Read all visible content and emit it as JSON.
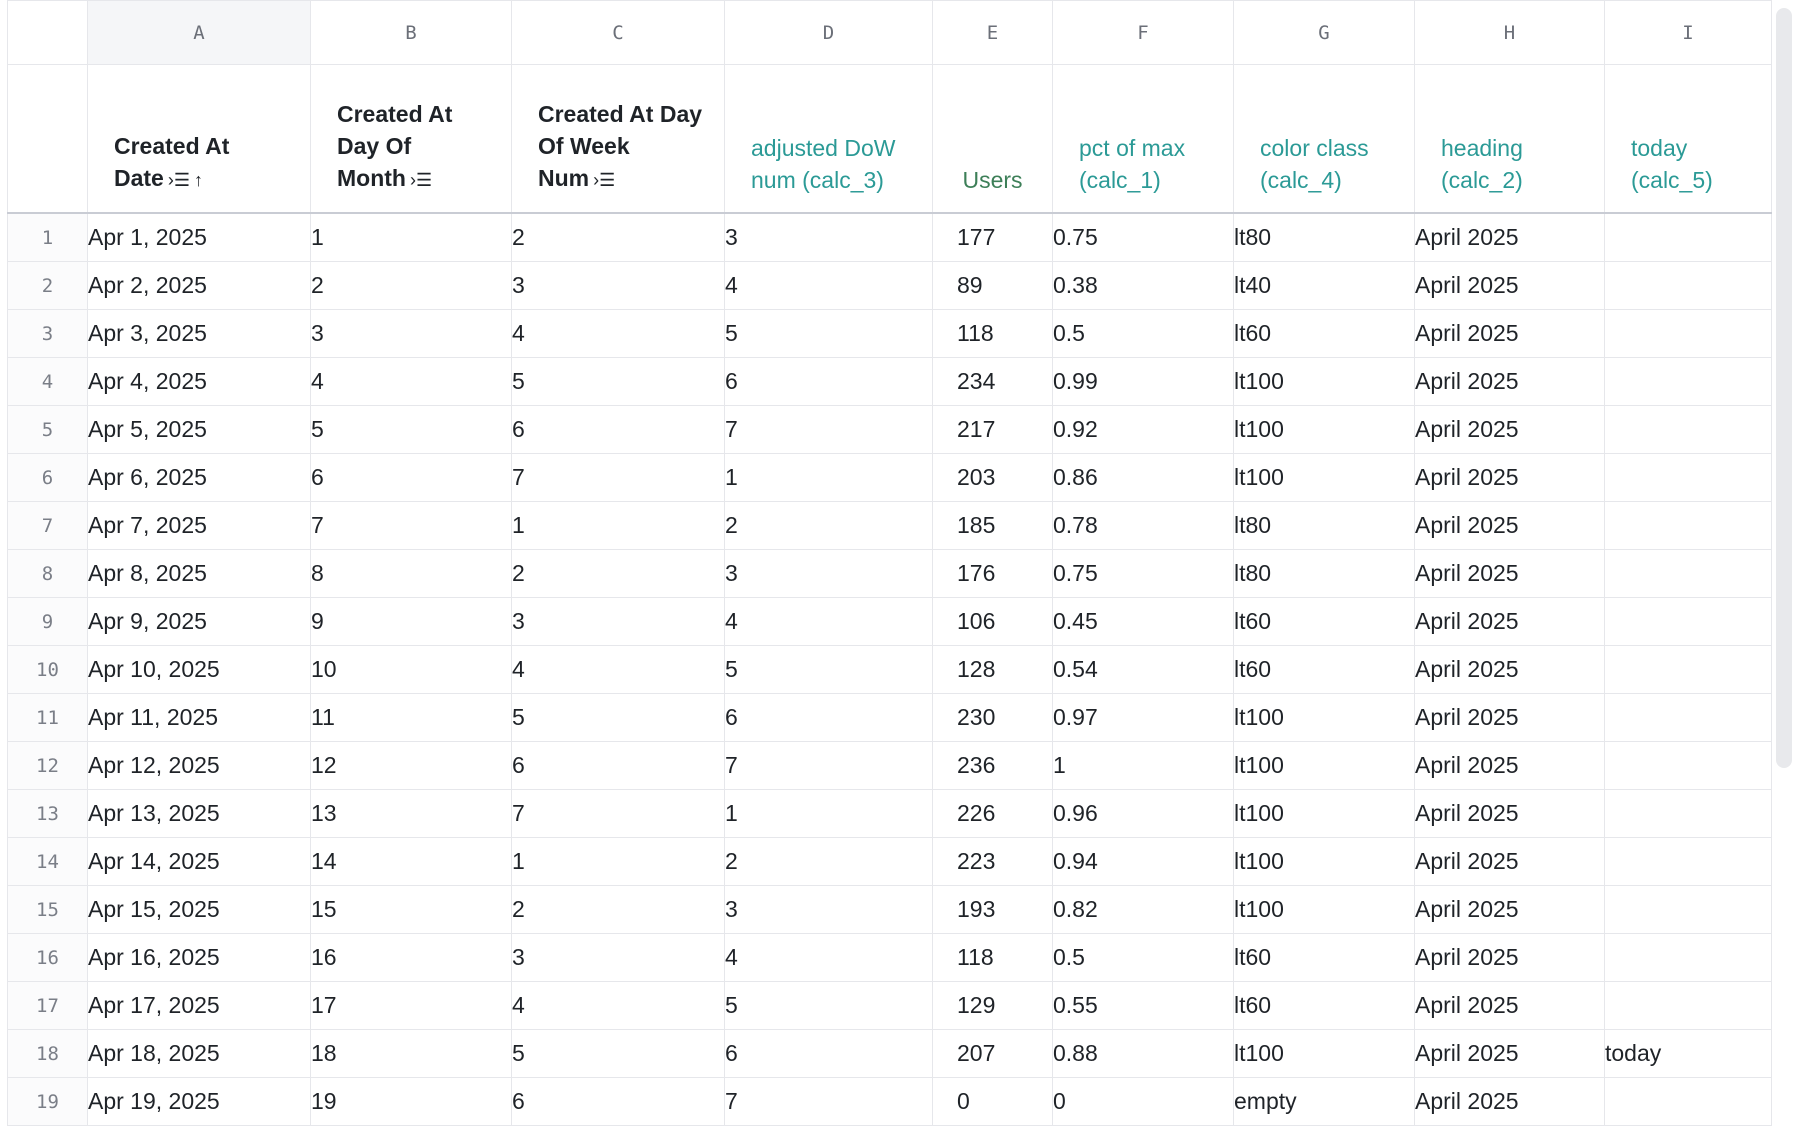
{
  "column_letters": [
    "A",
    "B",
    "C",
    "D",
    "E",
    "F",
    "G",
    "H",
    "I"
  ],
  "headers": [
    {
      "label": "Created At Date",
      "icons": [
        "sort-menu-icon",
        "sort-ascending-icon"
      ],
      "kind": "dimension"
    },
    {
      "label": "Created At Day Of Month",
      "icons": [
        "sort-menu-icon"
      ],
      "kind": "dimension"
    },
    {
      "label": "Created At Day Of Week Num",
      "icons": [
        "sort-menu-icon"
      ],
      "kind": "dimension"
    },
    {
      "label": "adjusted DoW num (calc_3)",
      "kind": "calc"
    },
    {
      "label": "Users",
      "kind": "measure"
    },
    {
      "label": "pct of max (calc_1)",
      "kind": "calc"
    },
    {
      "label": "color class (calc_4)",
      "kind": "calc"
    },
    {
      "label": "heading (calc_2)",
      "kind": "calc"
    },
    {
      "label": "today (calc_5)",
      "kind": "calc"
    }
  ],
  "colors": {
    "calc": "#2b9a96",
    "measure": "#3d7f58",
    "dimension": "#1f2328"
  },
  "rows": [
    [
      "1",
      "Apr 1, 2025",
      "1",
      "2",
      "3",
      "177",
      "0.75",
      "lt80",
      "April 2025",
      ""
    ],
    [
      "2",
      "Apr 2, 2025",
      "2",
      "3",
      "4",
      "89",
      "0.38",
      "lt40",
      "April 2025",
      ""
    ],
    [
      "3",
      "Apr 3, 2025",
      "3",
      "4",
      "5",
      "118",
      "0.5",
      "lt60",
      "April 2025",
      ""
    ],
    [
      "4",
      "Apr 4, 2025",
      "4",
      "5",
      "6",
      "234",
      "0.99",
      "lt100",
      "April 2025",
      ""
    ],
    [
      "5",
      "Apr 5, 2025",
      "5",
      "6",
      "7",
      "217",
      "0.92",
      "lt100",
      "April 2025",
      ""
    ],
    [
      "6",
      "Apr 6, 2025",
      "6",
      "7",
      "1",
      "203",
      "0.86",
      "lt100",
      "April 2025",
      ""
    ],
    [
      "7",
      "Apr 7, 2025",
      "7",
      "1",
      "2",
      "185",
      "0.78",
      "lt80",
      "April 2025",
      ""
    ],
    [
      "8",
      "Apr 8, 2025",
      "8",
      "2",
      "3",
      "176",
      "0.75",
      "lt80",
      "April 2025",
      ""
    ],
    [
      "9",
      "Apr 9, 2025",
      "9",
      "3",
      "4",
      "106",
      "0.45",
      "lt60",
      "April 2025",
      ""
    ],
    [
      "10",
      "Apr 10, 2025",
      "10",
      "4",
      "5",
      "128",
      "0.54",
      "lt60",
      "April 2025",
      ""
    ],
    [
      "11",
      "Apr 11, 2025",
      "11",
      "5",
      "6",
      "230",
      "0.97",
      "lt100",
      "April 2025",
      ""
    ],
    [
      "12",
      "Apr 12, 2025",
      "12",
      "6",
      "7",
      "236",
      "1",
      "lt100",
      "April 2025",
      ""
    ],
    [
      "13",
      "Apr 13, 2025",
      "13",
      "7",
      "1",
      "226",
      "0.96",
      "lt100",
      "April 2025",
      ""
    ],
    [
      "14",
      "Apr 14, 2025",
      "14",
      "1",
      "2",
      "223",
      "0.94",
      "lt100",
      "April 2025",
      ""
    ],
    [
      "15",
      "Apr 15, 2025",
      "15",
      "2",
      "3",
      "193",
      "0.82",
      "lt100",
      "April 2025",
      ""
    ],
    [
      "16",
      "Apr 16, 2025",
      "16",
      "3",
      "4",
      "118",
      "0.5",
      "lt60",
      "April 2025",
      ""
    ],
    [
      "17",
      "Apr 17, 2025",
      "17",
      "4",
      "5",
      "129",
      "0.55",
      "lt60",
      "April 2025",
      ""
    ],
    [
      "18",
      "Apr 18, 2025",
      "18",
      "5",
      "6",
      "207",
      "0.88",
      "lt100",
      "April 2025",
      "today"
    ],
    [
      "19",
      "Apr 19, 2025",
      "19",
      "6",
      "7",
      "0",
      "0",
      "empty",
      "April 2025",
      ""
    ]
  ]
}
